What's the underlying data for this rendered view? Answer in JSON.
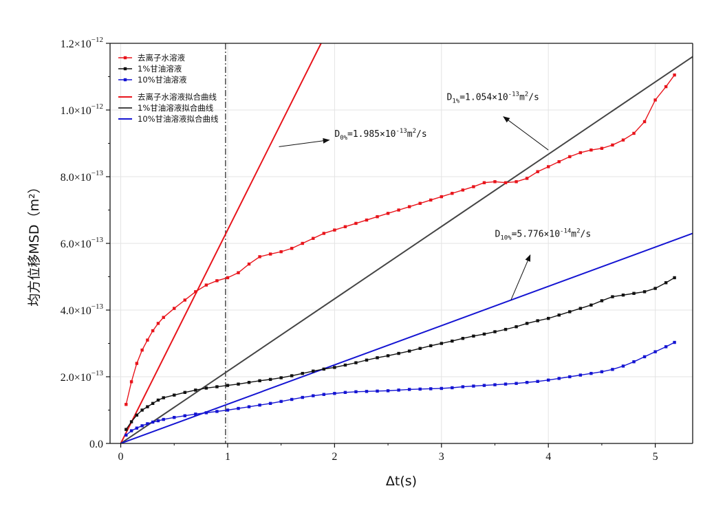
{
  "chart_data": {
    "type": "line",
    "xlabel": "Δt(s)",
    "ylabel": "均方位移MSD（m²）",
    "xlim": [
      -0.1,
      5.35
    ],
    "ylim": [
      0,
      1.2e-12
    ],
    "x_ticks": [
      0,
      1,
      2,
      3,
      4,
      5
    ],
    "x_tick_labels": [
      "0",
      "1",
      "2",
      "3",
      "4",
      "5"
    ],
    "y_ticks": [
      0,
      2e-13,
      4e-13,
      6e-13,
      8e-13,
      1e-12,
      1.2e-12
    ],
    "y_tick_labels": [
      {
        "mantissa": "0.0",
        "exponent": ""
      },
      {
        "mantissa": "2.0×10",
        "exponent": "−13"
      },
      {
        "mantissa": "4.0×10",
        "exponent": "−13"
      },
      {
        "mantissa": "6.0×10",
        "exponent": "−13"
      },
      {
        "mantissa": "8.0×10",
        "exponent": "−13"
      },
      {
        "mantissa": "1.0×10",
        "exponent": "−12"
      },
      {
        "mantissa": "1.2×10",
        "exponent": "−12"
      }
    ],
    "grid": true,
    "legend_position": "top-left",
    "reference_line": {
      "x": 0.98,
      "style": "dash-dot",
      "color": "#555555"
    },
    "series": [
      {
        "name": "去离子水溶液",
        "kind": "data",
        "color": "#e8141b",
        "x": [
          0.05,
          0.1,
          0.15,
          0.2,
          0.25,
          0.3,
          0.35,
          0.4,
          0.5,
          0.6,
          0.7,
          0.8,
          0.9,
          1.0,
          1.1,
          1.2,
          1.3,
          1.4,
          1.5,
          1.6,
          1.7,
          1.8,
          1.9,
          2.0,
          2.1,
          2.2,
          2.3,
          2.4,
          2.5,
          2.6,
          2.7,
          2.8,
          2.9,
          3.0,
          3.1,
          3.2,
          3.3,
          3.4,
          3.5,
          3.6,
          3.7,
          3.8,
          3.9,
          4.0,
          4.1,
          4.2,
          4.3,
          4.4,
          4.5,
          4.6,
          4.7,
          4.8,
          4.9,
          5.0,
          5.1,
          5.18
        ],
        "values": [
          1.17e-13,
          1.85e-13,
          2.4e-13,
          2.8e-13,
          3.1e-13,
          3.38e-13,
          3.6e-13,
          3.78e-13,
          4.05e-13,
          4.3e-13,
          4.55e-13,
          4.75e-13,
          4.88e-13,
          4.97e-13,
          5.12e-13,
          5.38e-13,
          5.6e-13,
          5.68e-13,
          5.75e-13,
          5.85e-13,
          6e-13,
          6.15e-13,
          6.3e-13,
          6.4e-13,
          6.5e-13,
          6.6e-13,
          6.7e-13,
          6.8e-13,
          6.9e-13,
          7e-13,
          7.1e-13,
          7.2e-13,
          7.3e-13,
          7.4e-13,
          7.5e-13,
          7.6e-13,
          7.7e-13,
          7.82e-13,
          7.85e-13,
          7.82e-13,
          7.85e-13,
          7.95e-13,
          8.15e-13,
          8.3e-13,
          8.45e-13,
          8.6e-13,
          8.72e-13,
          8.8e-13,
          8.85e-13,
          8.95e-13,
          9.1e-13,
          9.3e-13,
          9.65e-13,
          1.03e-12,
          1.07e-12,
          1.105e-12
        ]
      },
      {
        "name": "1%甘油溶液",
        "kind": "data",
        "color": "#111111",
        "x": [
          0.05,
          0.1,
          0.15,
          0.2,
          0.25,
          0.3,
          0.35,
          0.4,
          0.5,
          0.6,
          0.7,
          0.8,
          0.9,
          1.0,
          1.1,
          1.2,
          1.3,
          1.4,
          1.5,
          1.6,
          1.7,
          1.8,
          1.9,
          2.0,
          2.1,
          2.2,
          2.3,
          2.4,
          2.5,
          2.6,
          2.7,
          2.8,
          2.9,
          3.0,
          3.1,
          3.2,
          3.3,
          3.4,
          3.5,
          3.6,
          3.7,
          3.8,
          3.9,
          4.0,
          4.1,
          4.2,
          4.3,
          4.4,
          4.5,
          4.6,
          4.7,
          4.8,
          4.9,
          5.0,
          5.1,
          5.18
        ],
        "values": [
          4.2e-14,
          6.5e-14,
          8.5e-14,
          1e-13,
          1.1e-13,
          1.2e-13,
          1.3e-13,
          1.37e-13,
          1.45e-13,
          1.53e-13,
          1.6e-13,
          1.66e-13,
          1.7e-13,
          1.74e-13,
          1.78e-13,
          1.83e-13,
          1.88e-13,
          1.92e-13,
          1.97e-13,
          2.03e-13,
          2.1e-13,
          2.17e-13,
          2.23e-13,
          2.28e-13,
          2.35e-13,
          2.42e-13,
          2.5e-13,
          2.57e-13,
          2.63e-13,
          2.7e-13,
          2.77e-13,
          2.85e-13,
          2.93e-13,
          3e-13,
          3.07e-13,
          3.15e-13,
          3.22e-13,
          3.28e-13,
          3.35e-13,
          3.42e-13,
          3.5e-13,
          3.6e-13,
          3.68e-13,
          3.75e-13,
          3.85e-13,
          3.95e-13,
          4.05e-13,
          4.15e-13,
          4.28e-13,
          4.4e-13,
          4.45e-13,
          4.5e-13,
          4.55e-13,
          4.65e-13,
          4.82e-13,
          4.97e-13
        ]
      },
      {
        "name": "10%甘油溶液",
        "kind": "data",
        "color": "#1414d2",
        "x": [
          0.05,
          0.1,
          0.15,
          0.2,
          0.25,
          0.3,
          0.35,
          0.4,
          0.5,
          0.6,
          0.7,
          0.8,
          0.9,
          1.0,
          1.1,
          1.2,
          1.3,
          1.4,
          1.5,
          1.6,
          1.7,
          1.8,
          1.9,
          2.0,
          2.1,
          2.2,
          2.3,
          2.4,
          2.5,
          2.6,
          2.7,
          2.8,
          2.9,
          3.0,
          3.1,
          3.2,
          3.3,
          3.4,
          3.5,
          3.6,
          3.7,
          3.8,
          3.9,
          4.0,
          4.1,
          4.2,
          4.3,
          4.4,
          4.5,
          4.6,
          4.7,
          4.8,
          4.9,
          5.0,
          5.1,
          5.18
        ],
        "values": [
          2.5e-14,
          3.8e-14,
          4.6e-14,
          5.3e-14,
          5.9e-14,
          6.4e-14,
          6.8e-14,
          7.2e-14,
          7.8e-14,
          8.3e-14,
          8.8e-14,
          9.2e-14,
          9.6e-14,
          1e-13,
          1.05e-13,
          1.1e-13,
          1.15e-13,
          1.2e-13,
          1.26e-13,
          1.32e-13,
          1.38e-13,
          1.43e-13,
          1.47e-13,
          1.5e-13,
          1.53e-13,
          1.55e-13,
          1.56e-13,
          1.57e-13,
          1.58e-13,
          1.6e-13,
          1.62e-13,
          1.63e-13,
          1.64e-13,
          1.65e-13,
          1.67e-13,
          1.7e-13,
          1.72e-13,
          1.74e-13,
          1.76e-13,
          1.78e-13,
          1.8e-13,
          1.83e-13,
          1.86e-13,
          1.9e-13,
          1.95e-13,
          2e-13,
          2.05e-13,
          2.1e-13,
          2.15e-13,
          2.22e-13,
          2.32e-13,
          2.45e-13,
          2.6e-13,
          2.75e-13,
          2.9e-13,
          3.03e-13
        ]
      },
      {
        "name": "去离子水溶液拟合曲线",
        "kind": "fit",
        "color": "#e8141b",
        "x": [
          0,
          1.874
        ],
        "values": [
          0,
          1.2e-12
        ]
      },
      {
        "name": "1%甘油溶液拟合曲线",
        "kind": "fit",
        "color": "#444444",
        "x": [
          0,
          5.35
        ],
        "values": [
          0,
          1.16e-12
        ]
      },
      {
        "name": "10%甘油溶液拟合曲线",
        "kind": "fit",
        "color": "#1414d2",
        "x": [
          0,
          5.35
        ],
        "values": [
          0,
          6.3e-13
        ]
      }
    ],
    "annotations": [
      {
        "label": "D",
        "subscript": "0%",
        "value": "=1.985×10",
        "exponent": "-13",
        "unit": "m",
        "unit_exponent": "2",
        "unit_tail": "/s",
        "text_at": [
          2.0,
          9.2e-13
        ],
        "arrow_from": [
          1.48,
          8.9e-13
        ],
        "arrow_to": [
          1.95,
          9.1e-13
        ]
      },
      {
        "label": "D",
        "subscript": "1%",
        "value": "=1.054×10",
        "exponent": "-13",
        "unit": "m",
        "unit_exponent": "2",
        "unit_tail": "/s",
        "text_at": [
          3.05,
          1.03e-12
        ],
        "arrow_from": [
          4.0,
          8.8e-13
        ],
        "arrow_to": [
          3.58,
          9.8e-13
        ]
      },
      {
        "label": "D",
        "subscript": "10%",
        "value": "=5.776×10",
        "exponent": "-14",
        "unit": "m",
        "unit_exponent": "2",
        "unit_tail": "/s",
        "text_at": [
          3.5,
          6.2e-13
        ],
        "arrow_from": [
          3.65,
          4.3e-13
        ],
        "arrow_to": [
          3.83,
          5.65e-13
        ]
      }
    ]
  }
}
